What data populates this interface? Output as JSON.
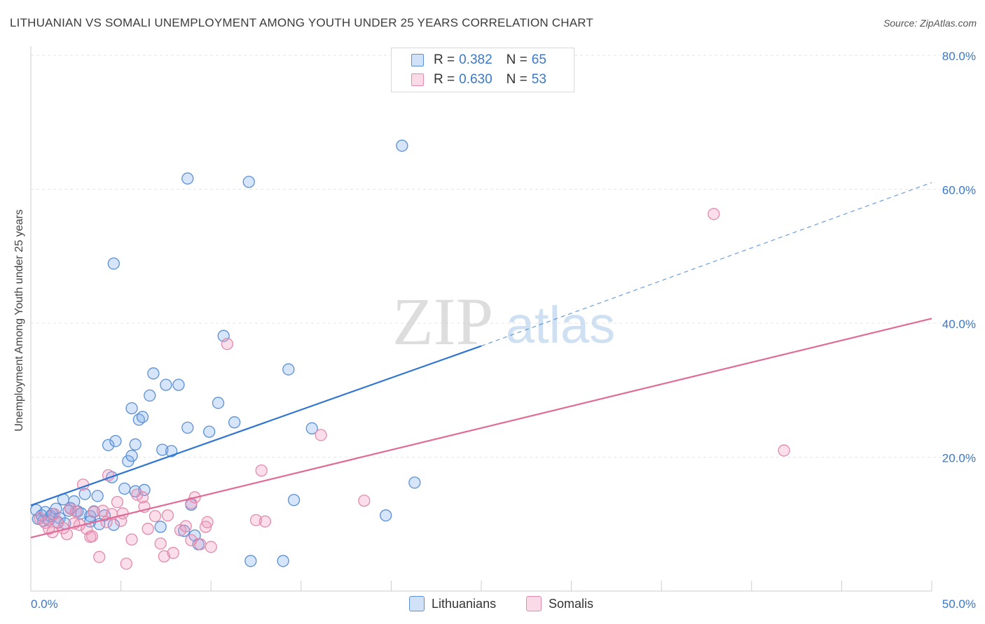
{
  "title": "LITHUANIAN VS SOMALI UNEMPLOYMENT AMONG YOUTH UNDER 25 YEARS CORRELATION CHART",
  "source": "Source: ZipAtlas.com",
  "watermark": {
    "zip": "ZIP",
    "atlas": "atlas"
  },
  "legend": {
    "rows": [
      {
        "r_label": "R =",
        "r_value": "0.382",
        "n_label": "N =",
        "n_value": "65"
      },
      {
        "r_label": "R =",
        "r_value": "0.630",
        "n_label": "N =",
        "n_value": "53"
      }
    ]
  },
  "colors": {
    "blue_fill": "rgba(120,170,235,0.30)",
    "blue_stroke": "#5b8fd6",
    "blue_line": "#2e74d0",
    "pink_fill": "rgba(240,150,185,0.30)",
    "pink_stroke": "#e38aab",
    "pink_line": "#e06b97",
    "axis_text": "#3a78c9",
    "grid": "#e6e6e6"
  },
  "chart_data": {
    "type": "scatter",
    "title": "LITHUANIAN VS SOMALI UNEMPLOYMENT AMONG YOUTH UNDER 25 YEARS CORRELATION CHART",
    "xlabel": "",
    "ylabel": "Unemployment Among Youth under 25 years",
    "xlim": [
      0,
      50
    ],
    "ylim": [
      0,
      80
    ],
    "x_tick_labels": [
      "0.0%",
      "50.0%"
    ],
    "y_ticks": [
      20,
      40,
      60,
      80
    ],
    "y_tick_labels": [
      "20.0%",
      "40.0%",
      "60.0%",
      "80.0%"
    ],
    "legend_position": "top-center",
    "series": [
      {
        "name": "Lithuanians",
        "r": 0.382,
        "n": 65,
        "trend": {
          "x0": 0,
          "y0": 12.8,
          "x1": 25,
          "y1": 36.6,
          "dashed_to_x": 50,
          "dashed_to_y": 61.0
        },
        "points": [
          [
            0.3,
            12.1
          ],
          [
            0.4,
            10.8
          ],
          [
            0.6,
            11.3
          ],
          [
            0.7,
            10.5
          ],
          [
            0.8,
            11.8
          ],
          [
            1.0,
            10.6
          ],
          [
            1.1,
            11.2
          ],
          [
            1.2,
            11.5
          ],
          [
            1.4,
            12.3
          ],
          [
            1.6,
            10.9
          ],
          [
            1.8,
            13.7
          ],
          [
            1.9,
            10.1
          ],
          [
            2.2,
            12.4
          ],
          [
            2.4,
            13.4
          ],
          [
            2.6,
            11.9
          ],
          [
            2.8,
            11.6
          ],
          [
            3.0,
            14.5
          ],
          [
            3.3,
            11.2
          ],
          [
            3.5,
            11.9
          ],
          [
            3.7,
            14.2
          ],
          [
            3.8,
            10.0
          ],
          [
            4.3,
            21.8
          ],
          [
            4.5,
            17.0
          ],
          [
            4.6,
            9.9
          ],
          [
            4.7,
            22.4
          ],
          [
            5.2,
            15.3
          ],
          [
            5.4,
            19.4
          ],
          [
            5.6,
            20.2
          ],
          [
            5.8,
            14.9
          ],
          [
            6.0,
            25.6
          ],
          [
            6.2,
            26.0
          ],
          [
            6.6,
            29.2
          ],
          [
            7.3,
            21.1
          ],
          [
            7.5,
            30.8
          ],
          [
            7.8,
            20.9
          ],
          [
            8.2,
            30.8
          ],
          [
            8.5,
            9.0
          ],
          [
            8.7,
            24.4
          ],
          [
            9.1,
            8.3
          ],
          [
            9.3,
            7.0
          ],
          [
            9.9,
            23.8
          ],
          [
            10.4,
            28.1
          ],
          [
            10.7,
            38.1
          ],
          [
            11.3,
            25.2
          ],
          [
            12.2,
            4.5
          ],
          [
            14.0,
            4.5
          ],
          [
            14.6,
            13.6
          ],
          [
            15.6,
            24.3
          ],
          [
            19.7,
            11.3
          ],
          [
            21.3,
            16.2
          ],
          [
            4.6,
            48.9
          ],
          [
            8.7,
            61.6
          ],
          [
            12.1,
            61.1
          ],
          [
            20.6,
            66.5
          ],
          [
            5.6,
            27.3
          ],
          [
            6.8,
            32.5
          ],
          [
            14.3,
            33.1
          ],
          [
            5.8,
            21.9
          ],
          [
            7.2,
            9.6
          ],
          [
            3.3,
            10.4
          ],
          [
            2.1,
            12.0
          ],
          [
            6.3,
            15.1
          ],
          [
            8.9,
            12.9
          ],
          [
            1.5,
            10.3
          ],
          [
            4.1,
            11.3
          ]
        ]
      },
      {
        "name": "Somalis",
        "r": 0.63,
        "n": 53,
        "trend": {
          "x0": 0,
          "y0": 8.0,
          "x1": 50,
          "y1": 40.7
        },
        "points": [
          [
            0.5,
            10.9
          ],
          [
            0.8,
            10.2
          ],
          [
            1.0,
            9.3
          ],
          [
            1.3,
            11.5
          ],
          [
            1.5,
            10.2
          ],
          [
            1.8,
            9.4
          ],
          [
            2.0,
            8.5
          ],
          [
            2.2,
            12.3
          ],
          [
            2.5,
            11.9
          ],
          [
            2.7,
            9.9
          ],
          [
            2.9,
            15.9
          ],
          [
            3.1,
            9.3
          ],
          [
            3.3,
            8.1
          ],
          [
            3.5,
            11.8
          ],
          [
            3.8,
            5.1
          ],
          [
            4.0,
            12.0
          ],
          [
            4.2,
            10.3
          ],
          [
            4.3,
            17.3
          ],
          [
            4.5,
            11.5
          ],
          [
            4.8,
            13.3
          ],
          [
            5.0,
            10.5
          ],
          [
            5.3,
            4.1
          ],
          [
            5.6,
            7.7
          ],
          [
            5.9,
            14.4
          ],
          [
            6.2,
            14.0
          ],
          [
            6.5,
            9.3
          ],
          [
            6.9,
            11.2
          ],
          [
            7.2,
            7.1
          ],
          [
            7.4,
            5.2
          ],
          [
            7.6,
            11.3
          ],
          [
            7.9,
            5.7
          ],
          [
            8.3,
            9.1
          ],
          [
            8.6,
            9.7
          ],
          [
            8.9,
            7.6
          ],
          [
            9.1,
            14.0
          ],
          [
            9.4,
            7.0
          ],
          [
            10.0,
            6.6
          ],
          [
            10.9,
            36.9
          ],
          [
            12.5,
            10.6
          ],
          [
            12.8,
            18.0
          ],
          [
            13.0,
            10.4
          ],
          [
            16.1,
            23.3
          ],
          [
            18.5,
            13.5
          ],
          [
            37.9,
            56.3
          ],
          [
            41.8,
            21.0
          ],
          [
            9.7,
            9.6
          ],
          [
            8.9,
            13.1
          ],
          [
            2.4,
            10.1
          ],
          [
            3.4,
            8.2
          ],
          [
            6.3,
            12.6
          ],
          [
            5.1,
            11.6
          ],
          [
            1.2,
            8.8
          ],
          [
            9.8,
            10.3
          ]
        ]
      }
    ]
  },
  "bottom_legend": [
    {
      "label": "Lithuanians"
    },
    {
      "label": "Somalis"
    }
  ]
}
